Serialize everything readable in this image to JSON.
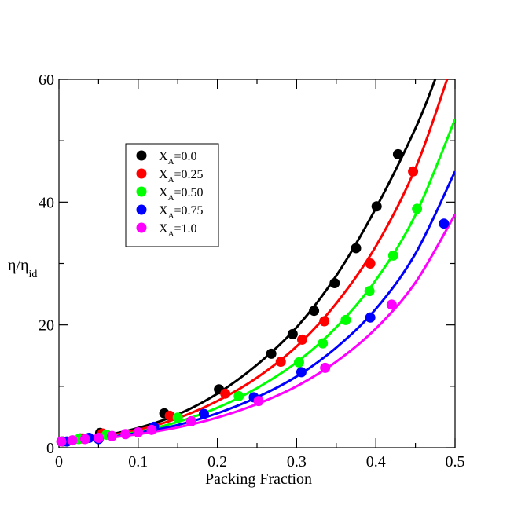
{
  "chart_data": {
    "type": "scatter",
    "title": "",
    "xlabel": "Packing Fraction",
    "ylabel": {
      "main": "η/η",
      "sub": "id"
    },
    "xlim": [
      0,
      0.5
    ],
    "ylim": [
      0,
      60
    ],
    "xticks": [
      0,
      0.1,
      0.2,
      0.3,
      0.4,
      0.5
    ],
    "xtick_labels": [
      "0",
      "0.1",
      "0.2",
      "0.3",
      "0.4",
      "0.5"
    ],
    "yticks": [
      0,
      20,
      40,
      60
    ],
    "ytick_labels": [
      "0",
      "20",
      "40",
      "60"
    ],
    "grid": false,
    "legend_position": "upper-left",
    "series": [
      {
        "name": "X_A=0.0",
        "label_main": "X",
        "label_sub": "A",
        "label_value": "=0.0",
        "color": "#000000",
        "points": [
          [
            0.005,
            1.0
          ],
          [
            0.027,
            1.5
          ],
          [
            0.052,
            2.4
          ],
          [
            0.133,
            5.6
          ],
          [
            0.202,
            9.5
          ],
          [
            0.268,
            15.3
          ],
          [
            0.295,
            18.5
          ],
          [
            0.322,
            22.3
          ],
          [
            0.348,
            26.8
          ],
          [
            0.375,
            32.5
          ],
          [
            0.401,
            39.3
          ],
          [
            0.428,
            47.8
          ]
        ],
        "curve": [
          [
            0,
            1.0
          ],
          [
            0.05,
            1.8
          ],
          [
            0.1,
            3.2
          ],
          [
            0.15,
            5.4
          ],
          [
            0.2,
            8.8
          ],
          [
            0.25,
            13.5
          ],
          [
            0.3,
            19.6
          ],
          [
            0.35,
            28.0
          ],
          [
            0.4,
            39.0
          ],
          [
            0.45,
            52.0
          ],
          [
            0.475,
            60.0
          ]
        ]
      },
      {
        "name": "X_A=0.25",
        "label_main": "X",
        "label_sub": "A",
        "label_value": "=0.25",
        "color": "#ff0000",
        "points": [
          [
            0.005,
            1.0
          ],
          [
            0.03,
            1.5
          ],
          [
            0.055,
            2.3
          ],
          [
            0.14,
            5.2
          ],
          [
            0.21,
            8.8
          ],
          [
            0.28,
            14.0
          ],
          [
            0.307,
            17.6
          ],
          [
            0.335,
            20.6
          ],
          [
            0.393,
            30.0
          ],
          [
            0.447,
            45.0
          ]
        ],
        "curve": [
          [
            0,
            1.0
          ],
          [
            0.05,
            1.7
          ],
          [
            0.1,
            2.9
          ],
          [
            0.15,
            4.8
          ],
          [
            0.2,
            7.6
          ],
          [
            0.25,
            11.4
          ],
          [
            0.3,
            16.5
          ],
          [
            0.35,
            23.5
          ],
          [
            0.4,
            32.8
          ],
          [
            0.45,
            45.5
          ],
          [
            0.49,
            60.0
          ]
        ]
      },
      {
        "name": "X_A=0.50",
        "label_main": "X",
        "label_sub": "A",
        "label_value": "=0.50",
        "color": "#00ff00",
        "points": [
          [
            0.005,
            1.0
          ],
          [
            0.025,
            1.4
          ],
          [
            0.06,
            2.1
          ],
          [
            0.15,
            4.9
          ],
          [
            0.227,
            8.4
          ],
          [
            0.303,
            13.9
          ],
          [
            0.333,
            17.0
          ],
          [
            0.362,
            20.8
          ],
          [
            0.392,
            25.5
          ],
          [
            0.422,
            31.3
          ],
          [
            0.452,
            38.9
          ]
        ],
        "curve": [
          [
            0,
            1.0
          ],
          [
            0.05,
            1.6
          ],
          [
            0.1,
            2.6
          ],
          [
            0.15,
            4.2
          ],
          [
            0.2,
            6.5
          ],
          [
            0.25,
            9.7
          ],
          [
            0.3,
            13.9
          ],
          [
            0.35,
            19.6
          ],
          [
            0.4,
            27.3
          ],
          [
            0.45,
            37.9
          ],
          [
            0.5,
            53.5
          ]
        ]
      },
      {
        "name": "X_A=0.75",
        "label_main": "X",
        "label_sub": "A",
        "label_value": "=0.75",
        "color": "#0000ff",
        "points": [
          [
            0.01,
            1.0
          ],
          [
            0.038,
            1.6
          ],
          [
            0.05,
            1.4
          ],
          [
            0.12,
            3.4
          ],
          [
            0.183,
            5.5
          ],
          [
            0.246,
            8.2
          ],
          [
            0.306,
            12.3
          ],
          [
            0.393,
            21.2
          ],
          [
            0.486,
            36.5
          ]
        ],
        "curve": [
          [
            0,
            1.0
          ],
          [
            0.05,
            1.5
          ],
          [
            0.1,
            2.4
          ],
          [
            0.15,
            3.7
          ],
          [
            0.2,
            5.6
          ],
          [
            0.25,
            8.2
          ],
          [
            0.3,
            11.6
          ],
          [
            0.35,
            16.3
          ],
          [
            0.4,
            22.6
          ],
          [
            0.45,
            31.6
          ],
          [
            0.5,
            45.0
          ]
        ]
      },
      {
        "name": "X_A=1.0",
        "label_main": "X",
        "label_sub": "A",
        "label_value": "=1.0",
        "color": "#ff00ff",
        "points": [
          [
            0.003,
            1.0
          ],
          [
            0.017,
            1.2
          ],
          [
            0.033,
            1.4
          ],
          [
            0.05,
            1.6
          ],
          [
            0.067,
            1.9
          ],
          [
            0.084,
            2.2
          ],
          [
            0.1,
            2.5
          ],
          [
            0.117,
            2.9
          ],
          [
            0.167,
            4.3
          ],
          [
            0.252,
            7.6
          ],
          [
            0.336,
            13.0
          ],
          [
            0.42,
            23.3
          ]
        ],
        "curve": [
          [
            0,
            1.0
          ],
          [
            0.05,
            1.45
          ],
          [
            0.1,
            2.2
          ],
          [
            0.15,
            3.3
          ],
          [
            0.2,
            4.9
          ],
          [
            0.25,
            7.1
          ],
          [
            0.3,
            10.0
          ],
          [
            0.35,
            14.0
          ],
          [
            0.4,
            19.4
          ],
          [
            0.45,
            26.9
          ],
          [
            0.5,
            38.0
          ]
        ]
      }
    ]
  }
}
